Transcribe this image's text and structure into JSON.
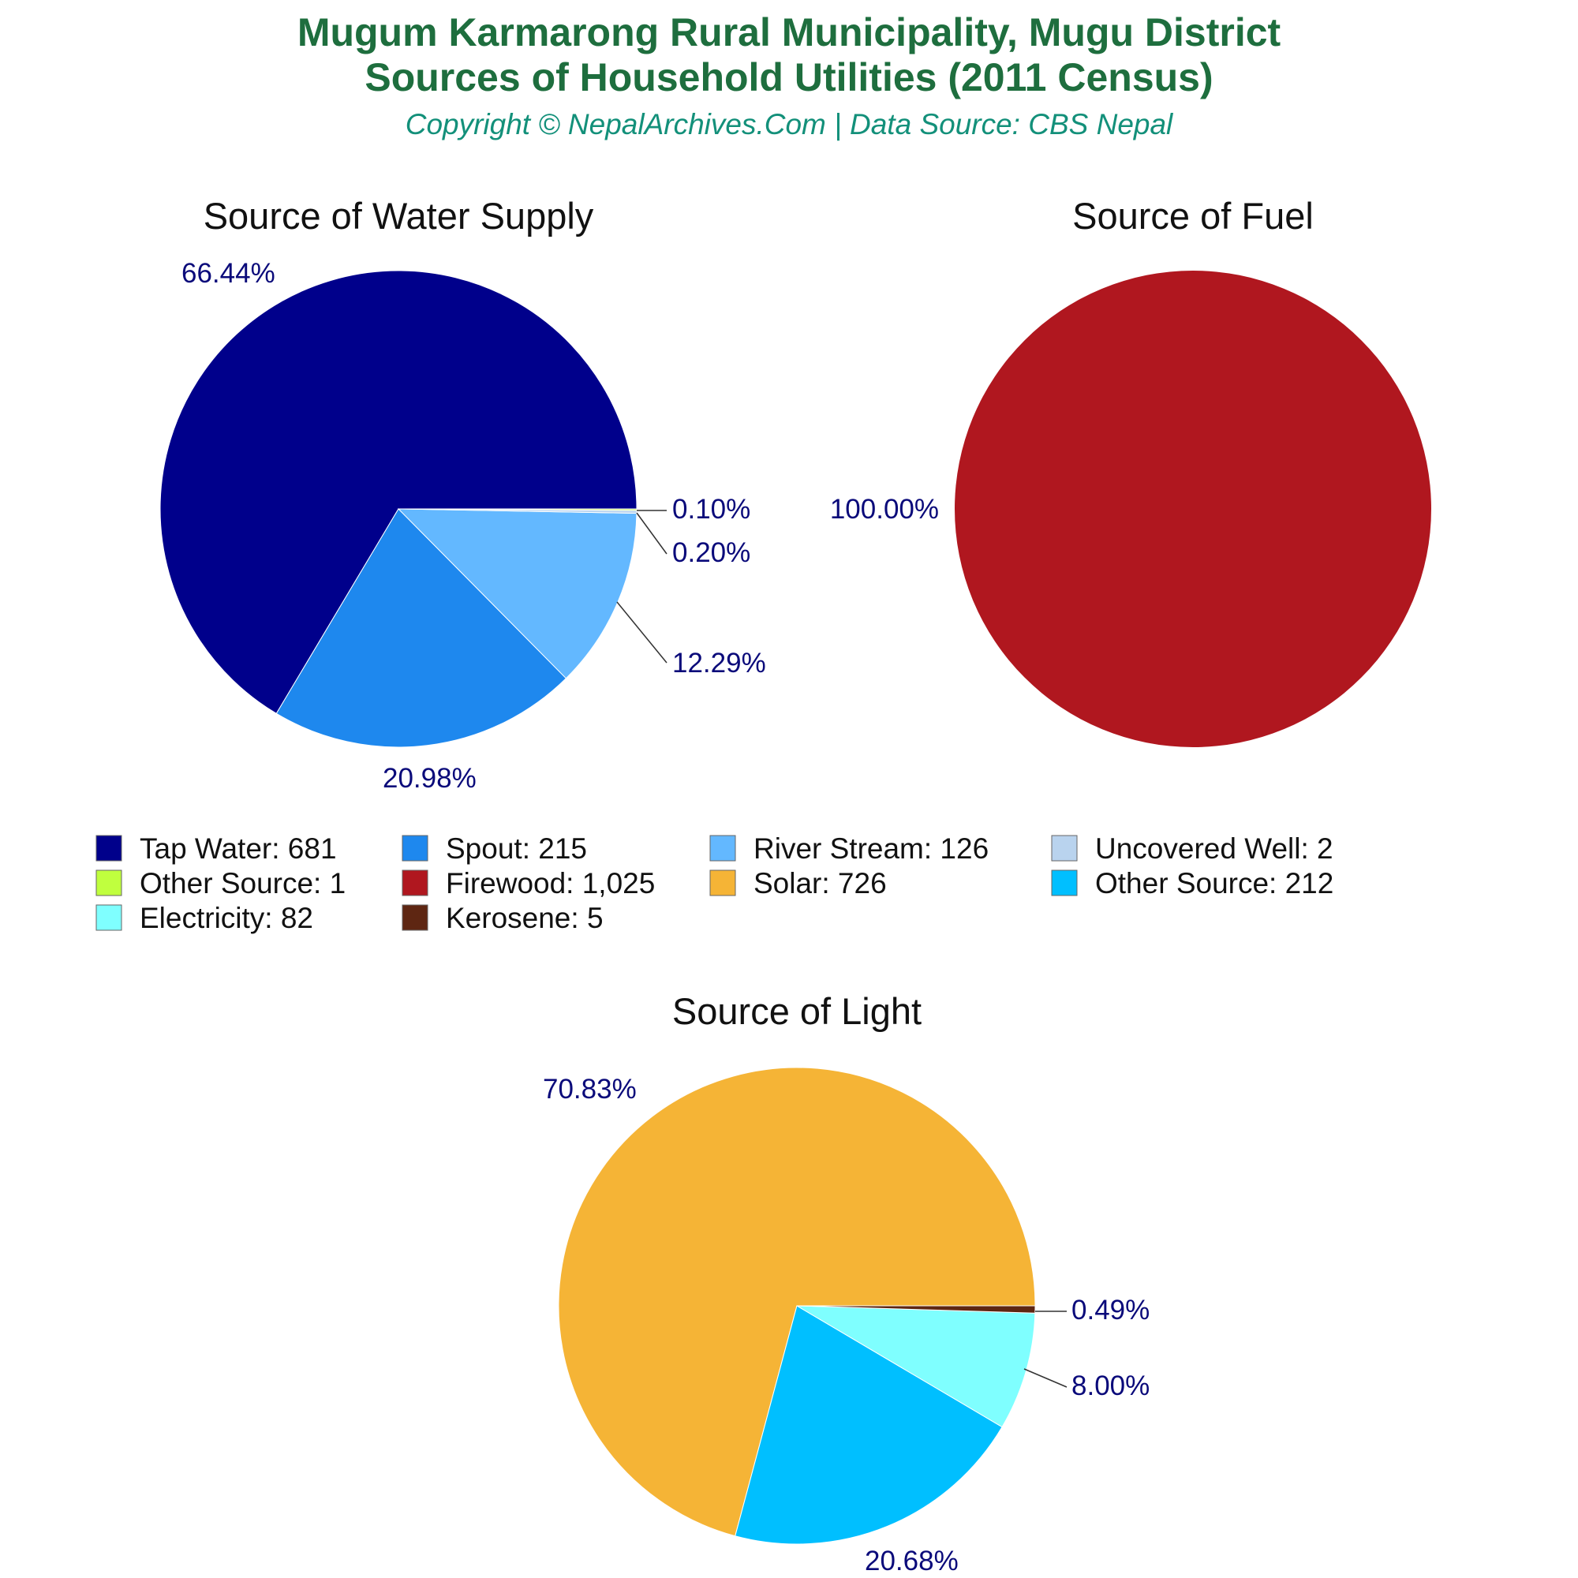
{
  "header": {
    "title_line1": "Mugum Karmarong Rural Municipality, Mugu District",
    "title_line2": "Sources of Household Utilities (2011 Census)",
    "subtitle": "Copyright © NepalArchives.Com | Data Source: CBS Nepal"
  },
  "chart_data": [
    {
      "type": "pie",
      "title": "Source of Water Supply",
      "slices": [
        {
          "label": "Tap Water",
          "value": 681,
          "percent_label": "66.44%",
          "color": "#00008b"
        },
        {
          "label": "Spout",
          "value": 215,
          "percent_label": "20.98%",
          "color": "#1e88ee"
        },
        {
          "label": "River Stream",
          "value": 126,
          "percent_label": "12.29%",
          "color": "#63b8ff"
        },
        {
          "label": "Uncovered Well",
          "value": 2,
          "percent_label": "0.20%",
          "color": "#b9d3ee"
        },
        {
          "label": "Other Source",
          "value": 1,
          "percent_label": "0.10%",
          "color": "#c0ff3e"
        }
      ]
    },
    {
      "type": "pie",
      "title": "Source of Fuel",
      "slices": [
        {
          "label": "Firewood",
          "value": 1025,
          "percent_label": "100.00%",
          "color": "#b0171f"
        }
      ]
    },
    {
      "type": "pie",
      "title": "Source of Light",
      "slices": [
        {
          "label": "Solar",
          "value": 726,
          "percent_label": "70.83%",
          "color": "#f5b436"
        },
        {
          "label": "Other Source",
          "value": 212,
          "percent_label": "20.68%",
          "color": "#00bfff"
        },
        {
          "label": "Electricity",
          "value": 82,
          "percent_label": "8.00%",
          "color": "#7fffff"
        },
        {
          "label": "Kerosene",
          "value": 5,
          "percent_label": "0.49%",
          "color": "#5e2612"
        }
      ]
    }
  ],
  "legend": [
    {
      "text": "Tap Water: 681",
      "color": "#00008b"
    },
    {
      "text": "Spout: 215",
      "color": "#1e88ee"
    },
    {
      "text": "River Stream: 126",
      "color": "#63b8ff"
    },
    {
      "text": "Uncovered Well: 2",
      "color": "#b9d3ee"
    },
    {
      "text": "Other Source: 1",
      "color": "#c0ff3e"
    },
    {
      "text": "Firewood: 1,025",
      "color": "#b0171f"
    },
    {
      "text": "Solar: 726",
      "color": "#f5b436"
    },
    {
      "text": "Other Source: 212",
      "color": "#00bfff"
    },
    {
      "text": "Electricity: 82",
      "color": "#7fffff"
    },
    {
      "text": "Kerosene: 5",
      "color": "#5e2612"
    }
  ]
}
